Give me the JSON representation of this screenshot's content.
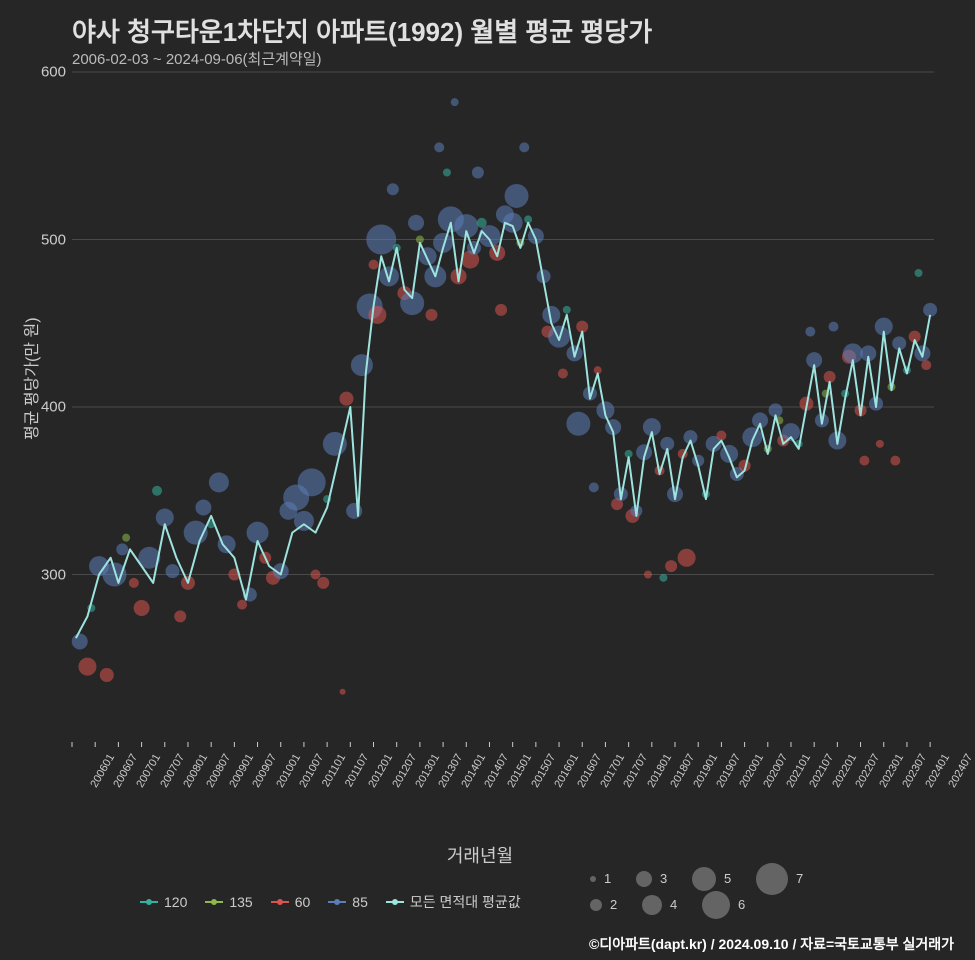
{
  "meta": {
    "title": "야사 청구타운1차단지 아파트(1992) 월별 평균 평당가",
    "subtitle": "2006-02-03 ~ 2024-09-06(최근계약일)",
    "ylabel": "평균 평당가(만 원)",
    "xlabel": "거래년월",
    "footer": "©디아파트(dapt.kr) / 2024.09.10 / 자료=국토교통부 실거래가"
  },
  "style": {
    "background": "#262626",
    "grid_color": "#888888",
    "grid_opacity": 0.5,
    "title_fontsize": 26,
    "subtitle_fontsize": 15,
    "axis_label_fontsize": 16,
    "tick_fontsize": 14,
    "line_color": "#9de3de",
    "line_width": 2
  },
  "plot": {
    "x_domain": [
      0,
      223
    ],
    "y_domain": [
      200,
      600
    ],
    "yticks": [
      300,
      400,
      500,
      600
    ],
    "xticks": [
      {
        "i": 0,
        "label": "200601"
      },
      {
        "i": 6,
        "label": "200607"
      },
      {
        "i": 12,
        "label": "200701"
      },
      {
        "i": 18,
        "label": "200707"
      },
      {
        "i": 24,
        "label": "200801"
      },
      {
        "i": 30,
        "label": "200807"
      },
      {
        "i": 36,
        "label": "200901"
      },
      {
        "i": 42,
        "label": "200907"
      },
      {
        "i": 48,
        "label": "201001"
      },
      {
        "i": 54,
        "label": "201007"
      },
      {
        "i": 60,
        "label": "201101"
      },
      {
        "i": 66,
        "label": "201107"
      },
      {
        "i": 72,
        "label": "201201"
      },
      {
        "i": 78,
        "label": "201207"
      },
      {
        "i": 84,
        "label": "201301"
      },
      {
        "i": 90,
        "label": "201307"
      },
      {
        "i": 96,
        "label": "201401"
      },
      {
        "i": 102,
        "label": "201407"
      },
      {
        "i": 108,
        "label": "201501"
      },
      {
        "i": 114,
        "label": "201507"
      },
      {
        "i": 120,
        "label": "201601"
      },
      {
        "i": 126,
        "label": "201607"
      },
      {
        "i": 132,
        "label": "201701"
      },
      {
        "i": 138,
        "label": "201707"
      },
      {
        "i": 144,
        "label": "201801"
      },
      {
        "i": 150,
        "label": "201807"
      },
      {
        "i": 156,
        "label": "201901"
      },
      {
        "i": 162,
        "label": "201907"
      },
      {
        "i": 168,
        "label": "202001"
      },
      {
        "i": 174,
        "label": "202007"
      },
      {
        "i": 180,
        "label": "202101"
      },
      {
        "i": 186,
        "label": "202107"
      },
      {
        "i": 192,
        "label": "202201"
      },
      {
        "i": 198,
        "label": "202207"
      },
      {
        "i": 204,
        "label": "202301"
      },
      {
        "i": 210,
        "label": "202307"
      },
      {
        "i": 216,
        "label": "202401"
      },
      {
        "i": 222,
        "label": "202407"
      }
    ]
  },
  "series_colors": {
    "120": "#36b09e",
    "135": "#8fb94a",
    "60": "#d9534f",
    "85": "#5b7db8",
    "avg": "#9de3de"
  },
  "legend_series": [
    {
      "name": "120",
      "color": "#36b09e"
    },
    {
      "name": "135",
      "color": "#8fb94a"
    },
    {
      "name": "60",
      "color": "#d9534f"
    },
    {
      "name": "85",
      "color": "#5b7db8"
    },
    {
      "name": "모든 면적대 평균값",
      "color": "#9de3de"
    }
  ],
  "legend_size": [
    {
      "label": "1",
      "r": 3
    },
    {
      "label": "2",
      "r": 6
    },
    {
      "label": "3",
      "r": 8
    },
    {
      "label": "4",
      "r": 10
    },
    {
      "label": "5",
      "r": 12
    },
    {
      "label": "6",
      "r": 14
    },
    {
      "label": "7",
      "r": 16
    }
  ],
  "avg_line": [
    {
      "x": 1,
      "y": 262
    },
    {
      "x": 4,
      "y": 275
    },
    {
      "x": 7,
      "y": 300
    },
    {
      "x": 10,
      "y": 310
    },
    {
      "x": 12,
      "y": 295
    },
    {
      "x": 15,
      "y": 315
    },
    {
      "x": 18,
      "y": 305
    },
    {
      "x": 21,
      "y": 295
    },
    {
      "x": 24,
      "y": 330
    },
    {
      "x": 27,
      "y": 310
    },
    {
      "x": 30,
      "y": 295
    },
    {
      "x": 33,
      "y": 320
    },
    {
      "x": 36,
      "y": 335
    },
    {
      "x": 39,
      "y": 318
    },
    {
      "x": 42,
      "y": 310
    },
    {
      "x": 45,
      "y": 285
    },
    {
      "x": 48,
      "y": 320
    },
    {
      "x": 51,
      "y": 305
    },
    {
      "x": 54,
      "y": 300
    },
    {
      "x": 57,
      "y": 325
    },
    {
      "x": 60,
      "y": 330
    },
    {
      "x": 63,
      "y": 325
    },
    {
      "x": 66,
      "y": 340
    },
    {
      "x": 69,
      "y": 370
    },
    {
      "x": 72,
      "y": 400
    },
    {
      "x": 74,
      "y": 335
    },
    {
      "x": 76,
      "y": 420
    },
    {
      "x": 78,
      "y": 460
    },
    {
      "x": 80,
      "y": 490
    },
    {
      "x": 82,
      "y": 475
    },
    {
      "x": 84,
      "y": 495
    },
    {
      "x": 86,
      "y": 470
    },
    {
      "x": 88,
      "y": 465
    },
    {
      "x": 90,
      "y": 498
    },
    {
      "x": 92,
      "y": 488
    },
    {
      "x": 94,
      "y": 478
    },
    {
      "x": 96,
      "y": 495
    },
    {
      "x": 98,
      "y": 510
    },
    {
      "x": 100,
      "y": 475
    },
    {
      "x": 102,
      "y": 505
    },
    {
      "x": 104,
      "y": 492
    },
    {
      "x": 106,
      "y": 505
    },
    {
      "x": 108,
      "y": 500
    },
    {
      "x": 110,
      "y": 490
    },
    {
      "x": 112,
      "y": 510
    },
    {
      "x": 114,
      "y": 508
    },
    {
      "x": 116,
      "y": 495
    },
    {
      "x": 118,
      "y": 510
    },
    {
      "x": 120,
      "y": 500
    },
    {
      "x": 122,
      "y": 475
    },
    {
      "x": 124,
      "y": 450
    },
    {
      "x": 126,
      "y": 440
    },
    {
      "x": 128,
      "y": 455
    },
    {
      "x": 130,
      "y": 430
    },
    {
      "x": 132,
      "y": 445
    },
    {
      "x": 134,
      "y": 405
    },
    {
      "x": 136,
      "y": 420
    },
    {
      "x": 138,
      "y": 395
    },
    {
      "x": 140,
      "y": 385
    },
    {
      "x": 142,
      "y": 345
    },
    {
      "x": 144,
      "y": 370
    },
    {
      "x": 146,
      "y": 335
    },
    {
      "x": 148,
      "y": 370
    },
    {
      "x": 150,
      "y": 385
    },
    {
      "x": 152,
      "y": 360
    },
    {
      "x": 154,
      "y": 375
    },
    {
      "x": 156,
      "y": 345
    },
    {
      "x": 158,
      "y": 370
    },
    {
      "x": 160,
      "y": 380
    },
    {
      "x": 162,
      "y": 365
    },
    {
      "x": 164,
      "y": 345
    },
    {
      "x": 166,
      "y": 375
    },
    {
      "x": 168,
      "y": 380
    },
    {
      "x": 170,
      "y": 370
    },
    {
      "x": 172,
      "y": 358
    },
    {
      "x": 174,
      "y": 362
    },
    {
      "x": 176,
      "y": 380
    },
    {
      "x": 178,
      "y": 390
    },
    {
      "x": 180,
      "y": 372
    },
    {
      "x": 182,
      "y": 395
    },
    {
      "x": 184,
      "y": 378
    },
    {
      "x": 186,
      "y": 382
    },
    {
      "x": 188,
      "y": 375
    },
    {
      "x": 190,
      "y": 400
    },
    {
      "x": 192,
      "y": 425
    },
    {
      "x": 194,
      "y": 390
    },
    {
      "x": 196,
      "y": 415
    },
    {
      "x": 198,
      "y": 378
    },
    {
      "x": 200,
      "y": 405
    },
    {
      "x": 202,
      "y": 428
    },
    {
      "x": 204,
      "y": 395
    },
    {
      "x": 206,
      "y": 430
    },
    {
      "x": 208,
      "y": 400
    },
    {
      "x": 210,
      "y": 445
    },
    {
      "x": 212,
      "y": 410
    },
    {
      "x": 214,
      "y": 435
    },
    {
      "x": 216,
      "y": 420
    },
    {
      "x": 218,
      "y": 440
    },
    {
      "x": 220,
      "y": 430
    },
    {
      "x": 222,
      "y": 455
    }
  ],
  "scatter": [
    {
      "x": 2,
      "y": 260,
      "s": "85",
      "r": 8
    },
    {
      "x": 4,
      "y": 245,
      "s": "60",
      "r": 9
    },
    {
      "x": 5,
      "y": 280,
      "s": "120",
      "r": 4
    },
    {
      "x": 7,
      "y": 305,
      "s": "85",
      "r": 10
    },
    {
      "x": 9,
      "y": 240,
      "s": "60",
      "r": 7
    },
    {
      "x": 11,
      "y": 300,
      "s": "85",
      "r": 12
    },
    {
      "x": 13,
      "y": 315,
      "s": "85",
      "r": 6
    },
    {
      "x": 14,
      "y": 322,
      "s": "135",
      "r": 4
    },
    {
      "x": 16,
      "y": 295,
      "s": "60",
      "r": 5
    },
    {
      "x": 18,
      "y": 280,
      "s": "60",
      "r": 8
    },
    {
      "x": 20,
      "y": 310,
      "s": "85",
      "r": 11
    },
    {
      "x": 22,
      "y": 350,
      "s": "120",
      "r": 5
    },
    {
      "x": 24,
      "y": 334,
      "s": "85",
      "r": 9
    },
    {
      "x": 26,
      "y": 302,
      "s": "85",
      "r": 7
    },
    {
      "x": 28,
      "y": 275,
      "s": "60",
      "r": 6
    },
    {
      "x": 30,
      "y": 295,
      "s": "60",
      "r": 7
    },
    {
      "x": 32,
      "y": 325,
      "s": "85",
      "r": 12
    },
    {
      "x": 34,
      "y": 340,
      "s": "85",
      "r": 8
    },
    {
      "x": 36,
      "y": 330,
      "s": "120",
      "r": 4
    },
    {
      "x": 38,
      "y": 355,
      "s": "85",
      "r": 10
    },
    {
      "x": 40,
      "y": 318,
      "s": "85",
      "r": 9
    },
    {
      "x": 42,
      "y": 300,
      "s": "60",
      "r": 6
    },
    {
      "x": 44,
      "y": 282,
      "s": "60",
      "r": 5
    },
    {
      "x": 46,
      "y": 288,
      "s": "85",
      "r": 7
    },
    {
      "x": 48,
      "y": 325,
      "s": "85",
      "r": 11
    },
    {
      "x": 50,
      "y": 310,
      "s": "60",
      "r": 6
    },
    {
      "x": 52,
      "y": 298,
      "s": "60",
      "r": 7
    },
    {
      "x": 54,
      "y": 302,
      "s": "85",
      "r": 8
    },
    {
      "x": 56,
      "y": 338,
      "s": "85",
      "r": 9
    },
    {
      "x": 58,
      "y": 346,
      "s": "85",
      "r": 13
    },
    {
      "x": 60,
      "y": 332,
      "s": "85",
      "r": 10
    },
    {
      "x": 62,
      "y": 355,
      "s": "85",
      "r": 14
    },
    {
      "x": 63,
      "y": 300,
      "s": "60",
      "r": 5
    },
    {
      "x": 65,
      "y": 295,
      "s": "60",
      "r": 6
    },
    {
      "x": 66,
      "y": 345,
      "s": "120",
      "r": 4
    },
    {
      "x": 68,
      "y": 378,
      "s": "85",
      "r": 12
    },
    {
      "x": 70,
      "y": 230,
      "s": "60",
      "r": 3
    },
    {
      "x": 71,
      "y": 405,
      "s": "60",
      "r": 7
    },
    {
      "x": 73,
      "y": 338,
      "s": "85",
      "r": 8
    },
    {
      "x": 75,
      "y": 425,
      "s": "85",
      "r": 11
    },
    {
      "x": 77,
      "y": 460,
      "s": "85",
      "r": 13
    },
    {
      "x": 78,
      "y": 485,
      "s": "60",
      "r": 5
    },
    {
      "x": 79,
      "y": 455,
      "s": "60",
      "r": 9
    },
    {
      "x": 80,
      "y": 500,
      "s": "85",
      "r": 15
    },
    {
      "x": 82,
      "y": 478,
      "s": "85",
      "r": 10
    },
    {
      "x": 83,
      "y": 530,
      "s": "85",
      "r": 6
    },
    {
      "x": 84,
      "y": 495,
      "s": "120",
      "r": 4
    },
    {
      "x": 86,
      "y": 468,
      "s": "60",
      "r": 7
    },
    {
      "x": 88,
      "y": 462,
      "s": "85",
      "r": 12
    },
    {
      "x": 89,
      "y": 510,
      "s": "85",
      "r": 8
    },
    {
      "x": 90,
      "y": 500,
      "s": "135",
      "r": 4
    },
    {
      "x": 92,
      "y": 490,
      "s": "85",
      "r": 9
    },
    {
      "x": 93,
      "y": 455,
      "s": "60",
      "r": 6
    },
    {
      "x": 94,
      "y": 478,
      "s": "85",
      "r": 11
    },
    {
      "x": 95,
      "y": 555,
      "s": "85",
      "r": 5
    },
    {
      "x": 96,
      "y": 498,
      "s": "85",
      "r": 10
    },
    {
      "x": 97,
      "y": 540,
      "s": "120",
      "r": 4
    },
    {
      "x": 98,
      "y": 512,
      "s": "85",
      "r": 13
    },
    {
      "x": 99,
      "y": 582,
      "s": "85",
      "r": 4
    },
    {
      "x": 100,
      "y": 478,
      "s": "60",
      "r": 8
    },
    {
      "x": 102,
      "y": 508,
      "s": "85",
      "r": 12
    },
    {
      "x": 103,
      "y": 488,
      "s": "60",
      "r": 9
    },
    {
      "x": 104,
      "y": 495,
      "s": "85",
      "r": 7
    },
    {
      "x": 105,
      "y": 540,
      "s": "85",
      "r": 6
    },
    {
      "x": 106,
      "y": 510,
      "s": "120",
      "r": 5
    },
    {
      "x": 108,
      "y": 502,
      "s": "85",
      "r": 11
    },
    {
      "x": 110,
      "y": 492,
      "s": "60",
      "r": 8
    },
    {
      "x": 111,
      "y": 458,
      "s": "60",
      "r": 6
    },
    {
      "x": 112,
      "y": 515,
      "s": "85",
      "r": 9
    },
    {
      "x": 114,
      "y": 510,
      "s": "85",
      "r": 10
    },
    {
      "x": 115,
      "y": 526,
      "s": "85",
      "r": 12
    },
    {
      "x": 116,
      "y": 498,
      "s": "135",
      "r": 4
    },
    {
      "x": 117,
      "y": 555,
      "s": "85",
      "r": 5
    },
    {
      "x": 118,
      "y": 512,
      "s": "120",
      "r": 4
    },
    {
      "x": 120,
      "y": 502,
      "s": "85",
      "r": 8
    },
    {
      "x": 122,
      "y": 478,
      "s": "85",
      "r": 7
    },
    {
      "x": 123,
      "y": 445,
      "s": "60",
      "r": 6
    },
    {
      "x": 124,
      "y": 455,
      "s": "85",
      "r": 9
    },
    {
      "x": 126,
      "y": 442,
      "s": "85",
      "r": 11
    },
    {
      "x": 127,
      "y": 420,
      "s": "60",
      "r": 5
    },
    {
      "x": 128,
      "y": 458,
      "s": "120",
      "r": 4
    },
    {
      "x": 130,
      "y": 432,
      "s": "85",
      "r": 8
    },
    {
      "x": 131,
      "y": 390,
      "s": "85",
      "r": 12
    },
    {
      "x": 132,
      "y": 448,
      "s": "60",
      "r": 6
    },
    {
      "x": 134,
      "y": 408,
      "s": "85",
      "r": 7
    },
    {
      "x": 135,
      "y": 352,
      "s": "85",
      "r": 5
    },
    {
      "x": 136,
      "y": 422,
      "s": "60",
      "r": 4
    },
    {
      "x": 138,
      "y": 398,
      "s": "85",
      "r": 9
    },
    {
      "x": 140,
      "y": 388,
      "s": "85",
      "r": 8
    },
    {
      "x": 141,
      "y": 342,
      "s": "60",
      "r": 6
    },
    {
      "x": 142,
      "y": 348,
      "s": "85",
      "r": 7
    },
    {
      "x": 144,
      "y": 372,
      "s": "120",
      "r": 4
    },
    {
      "x": 145,
      "y": 335,
      "s": "60",
      "r": 7
    },
    {
      "x": 146,
      "y": 338,
      "s": "85",
      "r": 6
    },
    {
      "x": 148,
      "y": 373,
      "s": "85",
      "r": 8
    },
    {
      "x": 149,
      "y": 300,
      "s": "60",
      "r": 4
    },
    {
      "x": 150,
      "y": 388,
      "s": "85",
      "r": 9
    },
    {
      "x": 152,
      "y": 362,
      "s": "60",
      "r": 5
    },
    {
      "x": 153,
      "y": 298,
      "s": "120",
      "r": 4
    },
    {
      "x": 154,
      "y": 378,
      "s": "85",
      "r": 7
    },
    {
      "x": 155,
      "y": 305,
      "s": "60",
      "r": 6
    },
    {
      "x": 156,
      "y": 348,
      "s": "85",
      "r": 8
    },
    {
      "x": 158,
      "y": 372,
      "s": "60",
      "r": 5
    },
    {
      "x": 159,
      "y": 310,
      "s": "60",
      "r": 9
    },
    {
      "x": 160,
      "y": 382,
      "s": "85",
      "r": 7
    },
    {
      "x": 162,
      "y": 368,
      "s": "85",
      "r": 6
    },
    {
      "x": 164,
      "y": 348,
      "s": "120",
      "r": 4
    },
    {
      "x": 166,
      "y": 378,
      "s": "85",
      "r": 8
    },
    {
      "x": 168,
      "y": 383,
      "s": "60",
      "r": 5
    },
    {
      "x": 170,
      "y": 372,
      "s": "85",
      "r": 9
    },
    {
      "x": 172,
      "y": 360,
      "s": "85",
      "r": 7
    },
    {
      "x": 174,
      "y": 365,
      "s": "60",
      "r": 6
    },
    {
      "x": 176,
      "y": 382,
      "s": "85",
      "r": 10
    },
    {
      "x": 178,
      "y": 392,
      "s": "85",
      "r": 8
    },
    {
      "x": 180,
      "y": 375,
      "s": "135",
      "r": 4
    },
    {
      "x": 182,
      "y": 398,
      "s": "85",
      "r": 7
    },
    {
      "x": 183,
      "y": 392,
      "s": "135",
      "r": 4
    },
    {
      "x": 184,
      "y": 380,
      "s": "60",
      "r": 6
    },
    {
      "x": 186,
      "y": 385,
      "s": "85",
      "r": 9
    },
    {
      "x": 188,
      "y": 378,
      "s": "120",
      "r": 4
    },
    {
      "x": 190,
      "y": 402,
      "s": "60",
      "r": 7
    },
    {
      "x": 191,
      "y": 445,
      "s": "85",
      "r": 5
    },
    {
      "x": 192,
      "y": 428,
      "s": "85",
      "r": 8
    },
    {
      "x": 194,
      "y": 392,
      "s": "85",
      "r": 7
    },
    {
      "x": 195,
      "y": 408,
      "s": "135",
      "r": 4
    },
    {
      "x": 196,
      "y": 418,
      "s": "60",
      "r": 6
    },
    {
      "x": 197,
      "y": 448,
      "s": "85",
      "r": 5
    },
    {
      "x": 198,
      "y": 380,
      "s": "85",
      "r": 9
    },
    {
      "x": 200,
      "y": 408,
      "s": "120",
      "r": 4
    },
    {
      "x": 201,
      "y": 430,
      "s": "60",
      "r": 7
    },
    {
      "x": 202,
      "y": 432,
      "s": "85",
      "r": 10
    },
    {
      "x": 204,
      "y": 398,
      "s": "60",
      "r": 6
    },
    {
      "x": 205,
      "y": 368,
      "s": "60",
      "r": 5
    },
    {
      "x": 206,
      "y": 432,
      "s": "85",
      "r": 8
    },
    {
      "x": 208,
      "y": 402,
      "s": "85",
      "r": 7
    },
    {
      "x": 209,
      "y": 378,
      "s": "60",
      "r": 4
    },
    {
      "x": 210,
      "y": 448,
      "s": "85",
      "r": 9
    },
    {
      "x": 212,
      "y": 412,
      "s": "135",
      "r": 4
    },
    {
      "x": 213,
      "y": 368,
      "s": "60",
      "r": 5
    },
    {
      "x": 214,
      "y": 438,
      "s": "85",
      "r": 7
    },
    {
      "x": 216,
      "y": 422,
      "s": "120",
      "r": 4
    },
    {
      "x": 218,
      "y": 442,
      "s": "60",
      "r": 6
    },
    {
      "x": 219,
      "y": 480,
      "s": "120",
      "r": 4
    },
    {
      "x": 220,
      "y": 432,
      "s": "85",
      "r": 8
    },
    {
      "x": 221,
      "y": 425,
      "s": "60",
      "r": 5
    },
    {
      "x": 222,
      "y": 458,
      "s": "85",
      "r": 7
    }
  ]
}
